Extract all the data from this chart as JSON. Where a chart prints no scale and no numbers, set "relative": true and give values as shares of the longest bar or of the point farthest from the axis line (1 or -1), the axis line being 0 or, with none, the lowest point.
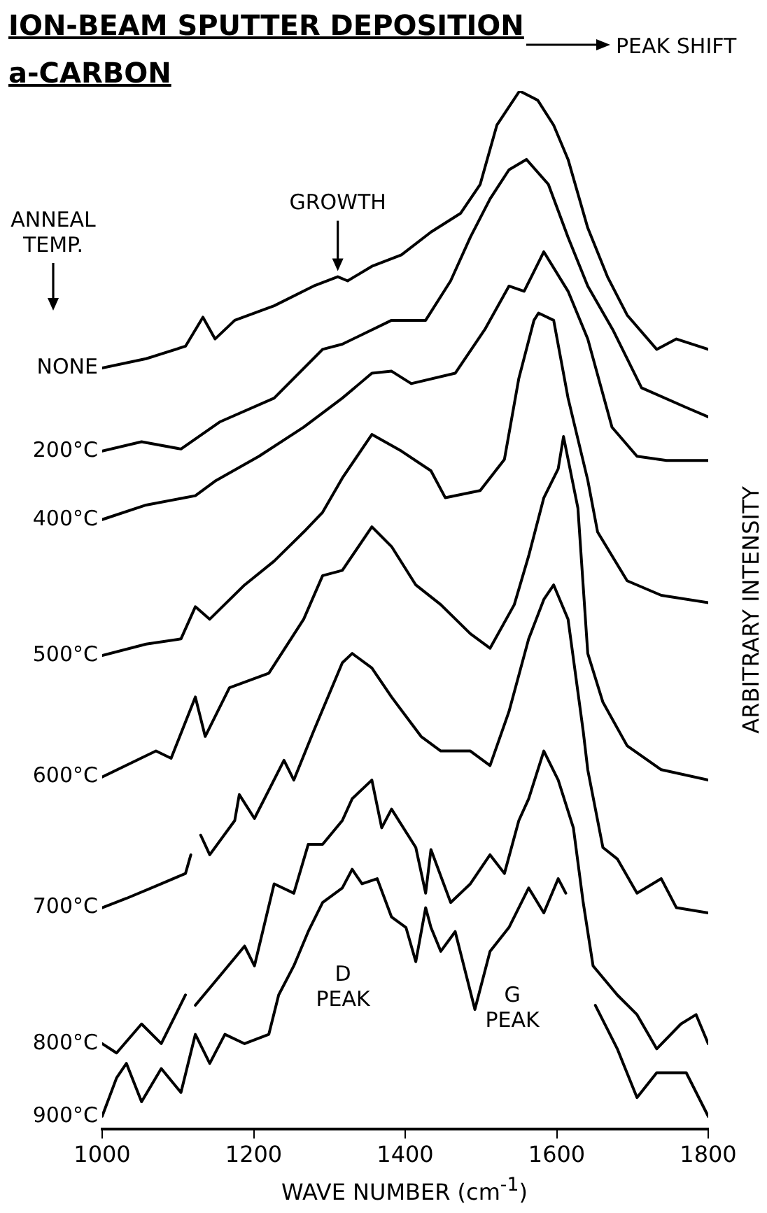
{
  "chart_data": {
    "type": "line",
    "title": "ION-BEAM SPUTTER DEPOSITION",
    "subtitle": "a-CARBON",
    "xlabel": "WAVE NUMBER (cm$^{-1}$)",
    "ylabel": "ARBITRARY INTENSITY",
    "relative": true,
    "xlim": [
      1000,
      1800
    ],
    "xticks": [
      1000,
      1200,
      1400,
      1600,
      1800
    ],
    "grid": false,
    "legend": false,
    "marker": "none",
    "line_style": "solid",
    "annotations": [
      "ANNEAL TEMP.",
      "PEAK SHIFT",
      "D PEAK",
      "G PEAK",
      {
        "text": "GROWTH",
        "x": 1311,
        "y": 0.821
      }
    ],
    "series": [
      {
        "name": "NONE",
        "color": "#000000",
        "x": [
          1000,
          1058,
          1110,
          1133,
          1149,
          1175,
          1227,
          1279,
          1311,
          1324,
          1356,
          1395,
          1434,
          1473,
          1499,
          1521,
          1551,
          1575,
          1596,
          1615,
          1641,
          1667,
          1693,
          1732,
          1758,
          1800
        ],
        "values": [
          0.733,
          0.742,
          0.754,
          0.782,
          0.761,
          0.779,
          0.793,
          0.812,
          0.821,
          0.817,
          0.831,
          0.842,
          0.864,
          0.882,
          0.91,
          0.967,
          1.0,
          0.991,
          0.967,
          0.934,
          0.868,
          0.821,
          0.784,
          0.751,
          0.761,
          0.751
        ]
      },
      {
        "name": "200°C",
        "color": "#000000",
        "x": [
          1000,
          1052,
          1104,
          1155,
          1227,
          1291,
          1317,
          1382,
          1427,
          1460,
          1486,
          1512,
          1537,
          1560,
          1589,
          1615,
          1641,
          1674,
          1712,
          1771,
          1800
        ],
        "values": [
          0.653,
          0.662,
          0.655,
          0.681,
          0.704,
          0.751,
          0.756,
          0.779,
          0.779,
          0.817,
          0.859,
          0.896,
          0.924,
          0.934,
          0.91,
          0.859,
          0.812,
          0.77,
          0.714,
          0.695,
          0.686
        ]
      },
      {
        "name": "400°C",
        "color": "#000000",
        "x": [
          1000,
          1058,
          1123,
          1149,
          1207,
          1266,
          1317,
          1356,
          1382,
          1408,
          1466,
          1505,
          1537,
          1557,
          1583,
          1615,
          1641,
          1673,
          1706,
          1745,
          1800
        ],
        "values": [
          0.587,
          0.601,
          0.61,
          0.624,
          0.648,
          0.676,
          0.704,
          0.728,
          0.73,
          0.718,
          0.728,
          0.77,
          0.812,
          0.807,
          0.845,
          0.807,
          0.761,
          0.676,
          0.648,
          0.644,
          0.644
        ]
      },
      {
        "name": "500°C",
        "color": "#000000",
        "x": [
          1000,
          1058,
          1104,
          1123,
          1142,
          1188,
          1227,
          1266,
          1291,
          1317,
          1356,
          1395,
          1434,
          1453,
          1499,
          1531,
          1550,
          1570,
          1576,
          1596,
          1615,
          1641,
          1654,
          1693,
          1738,
          1800
        ],
        "values": [
          0.456,
          0.467,
          0.472,
          0.503,
          0.491,
          0.524,
          0.547,
          0.575,
          0.594,
          0.627,
          0.669,
          0.653,
          0.634,
          0.608,
          0.615,
          0.645,
          0.723,
          0.779,
          0.786,
          0.779,
          0.704,
          0.625,
          0.575,
          0.528,
          0.514,
          0.507
        ]
      },
      {
        "name": "600°C",
        "color": "#000000",
        "x": [
          1000,
          1071,
          1091,
          1123,
          1136,
          1168,
          1220,
          1266,
          1291,
          1317,
          1356,
          1382,
          1414,
          1447,
          1486,
          1512,
          1544,
          1563,
          1583,
          1602,
          1609,
          1628,
          1641,
          1661,
          1693,
          1738,
          1800
        ],
        "values": [
          0.339,
          0.364,
          0.357,
          0.416,
          0.378,
          0.425,
          0.439,
          0.491,
          0.533,
          0.538,
          0.58,
          0.561,
          0.524,
          0.505,
          0.477,
          0.463,
          0.505,
          0.552,
          0.608,
          0.636,
          0.667,
          0.598,
          0.458,
          0.411,
          0.369,
          0.346,
          0.336
        ]
      },
      {
        "name": "700°C",
        "color": "#000000",
        "x": [
          1000,
          1032,
          1078,
          1110,
          1117,
          1120,
          1130,
          1142,
          1175,
          1181,
          1201,
          1240,
          1253,
          1279,
          1317,
          1330,
          1356,
          1382,
          1421,
          1447,
          1486,
          1512,
          1537,
          1563,
          1583,
          1596,
          1615,
          1635,
          1641,
          1661,
          1680,
          1706,
          1738,
          1758,
          1800
        ],
        "values": [
          0.213,
          0.222,
          0.236,
          0.246,
          0.264,
          null,
          0.283,
          0.264,
          0.297,
          0.322,
          0.299,
          0.355,
          0.336,
          0.383,
          0.449,
          0.458,
          0.444,
          0.416,
          0.378,
          0.364,
          0.364,
          0.35,
          0.402,
          0.472,
          0.51,
          0.524,
          0.491,
          0.383,
          0.346,
          0.271,
          0.26,
          0.227,
          0.241,
          0.213,
          0.208
        ]
      },
      {
        "name": "800°C",
        "color": "#000000",
        "x": [
          1000,
          1019,
          1052,
          1078,
          1110,
          1117,
          1123,
          1155,
          1188,
          1201,
          1227,
          1253,
          1272,
          1291,
          1317,
          1330,
          1356,
          1369,
          1382,
          1414,
          1427,
          1434,
          1460,
          1486,
          1512,
          1531,
          1550,
          1563,
          1583,
          1602,
          1622,
          1635,
          1648,
          1680,
          1706,
          1732,
          1764,
          1784,
          1800
        ],
        "values": [
          0.082,
          0.073,
          0.101,
          0.082,
          0.129,
          null,
          0.119,
          0.147,
          0.176,
          0.157,
          0.236,
          0.227,
          0.274,
          0.274,
          0.297,
          0.318,
          0.336,
          0.29,
          0.308,
          0.271,
          0.227,
          0.269,
          0.218,
          0.236,
          0.264,
          0.246,
          0.297,
          0.318,
          0.364,
          0.336,
          0.29,
          0.218,
          0.157,
          0.129,
          0.11,
          0.077,
          0.101,
          0.11,
          0.082
        ]
      },
      {
        "name": "900°C",
        "color": "#000000",
        "x": [
          1000,
          1019,
          1032,
          1052,
          1078,
          1104,
          1123,
          1142,
          1162,
          1188,
          1220,
          1233,
          1253,
          1272,
          1291,
          1317,
          1330,
          1343,
          1363,
          1382,
          1401,
          1414,
          1427,
          1434,
          1447,
          1466,
          1492,
          1512,
          1537,
          1563,
          1583,
          1602,
          1612,
          1630,
          1651,
          1680,
          1706,
          1732,
          1771,
          1800
        ],
        "values": [
          0.012,
          0.049,
          0.063,
          0.026,
          0.058,
          0.035,
          0.091,
          0.063,
          0.091,
          0.082,
          0.091,
          0.129,
          0.157,
          0.19,
          0.218,
          0.232,
          0.25,
          0.236,
          0.241,
          0.204,
          0.194,
          0.161,
          0.213,
          0.194,
          0.171,
          0.19,
          0.115,
          0.171,
          0.194,
          0.232,
          0.208,
          0.241,
          0.227,
          null,
          0.119,
          0.077,
          0.03,
          0.054,
          0.054,
          0.012
        ]
      }
    ]
  }
}
